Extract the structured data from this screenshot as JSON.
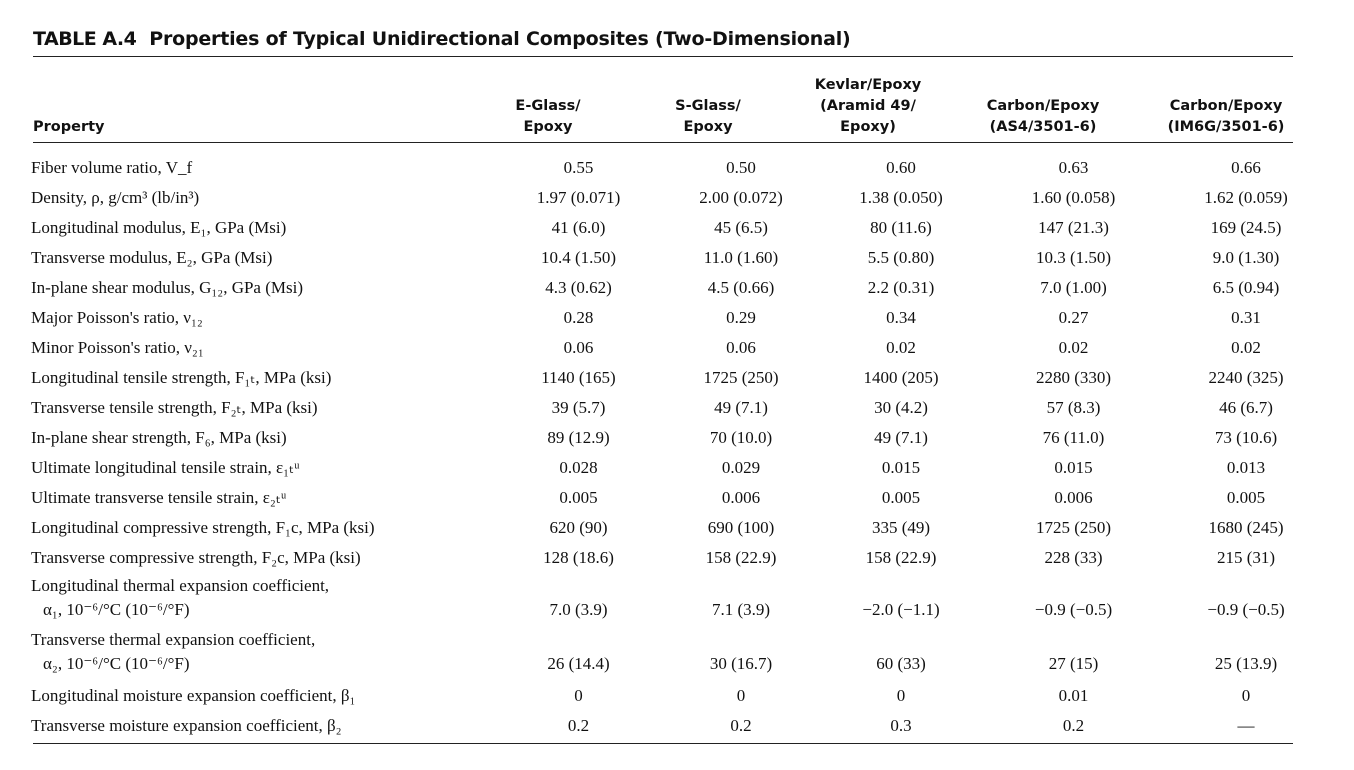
{
  "caption": {
    "label": "TABLE A.4",
    "title": "Properties of Typical Unidirectional Composites (Two-Dimensional)"
  },
  "columns": [
    "Property",
    "E-Glass/\nEpoxy",
    "S-Glass/\nEpoxy",
    "Kevlar/Epoxy\n(Aramid 49/\nEpoxy)",
    "Carbon/Epoxy\n(AS4/3501-6)",
    "Carbon/Epoxy\n(IM6G/3501-6)"
  ],
  "rows": [
    {
      "property": "Fiber volume ratio, V_f",
      "values": [
        "0.55",
        "0.50",
        "0.60",
        "0.63",
        "0.66"
      ]
    },
    {
      "property": "Density, ρ, g/cm³ (lb/in³)",
      "values": [
        "1.97 (0.071)",
        "2.00 (0.072)",
        "1.38 (0.050)",
        "1.60 (0.058)",
        "1.62 (0.059)"
      ]
    },
    {
      "property": "Longitudinal modulus, E₁, GPa (Msi)",
      "values": [
        "41 (6.0)",
        "45 (6.5)",
        "80 (11.6)",
        "147 (21.3)",
        "169 (24.5)"
      ]
    },
    {
      "property": "Transverse modulus, E₂, GPa (Msi)",
      "values": [
        "10.4 (1.50)",
        "11.0 (1.60)",
        "5.5 (0.80)",
        "10.3 (1.50)",
        "9.0 (1.30)"
      ]
    },
    {
      "property": "In-plane shear modulus, G₁₂, GPa (Msi)",
      "values": [
        "4.3 (0.62)",
        "4.5 (0.66)",
        "2.2 (0.31)",
        "7.0 (1.00)",
        "6.5 (0.94)"
      ]
    },
    {
      "property": "Major Poisson's ratio, ν₁₂",
      "values": [
        "0.28",
        "0.29",
        "0.34",
        "0.27",
        "0.31"
      ]
    },
    {
      "property": "Minor Poisson's ratio, ν₂₁",
      "values": [
        "0.06",
        "0.06",
        "0.02",
        "0.02",
        "0.02"
      ]
    },
    {
      "property": "Longitudinal tensile strength, F₁ₜ, MPa (ksi)",
      "values": [
        "1140 (165)",
        "1725 (250)",
        "1400 (205)",
        "2280 (330)",
        "2240 (325)"
      ]
    },
    {
      "property": "Transverse tensile strength, F₂ₜ, MPa (ksi)",
      "values": [
        "39 (5.7)",
        "49 (7.1)",
        "30 (4.2)",
        "57 (8.3)",
        "46 (6.7)"
      ]
    },
    {
      "property": "In-plane shear strength, F₆, MPa (ksi)",
      "values": [
        "89 (12.9)",
        "70 (10.0)",
        "49 (7.1)",
        "76 (11.0)",
        "73 (10.6)"
      ]
    },
    {
      "property": "Ultimate longitudinal tensile strain, ε₁ₜᵘ",
      "values": [
        "0.028",
        "0.029",
        "0.015",
        "0.015",
        "0.013"
      ]
    },
    {
      "property": "Ultimate transverse tensile strain, ε₂ₜᵘ",
      "values": [
        "0.005",
        "0.006",
        "0.005",
        "0.006",
        "0.005"
      ]
    },
    {
      "property": "Longitudinal compressive strength, F₁c, MPa (ksi)",
      "values": [
        "620 (90)",
        "690 (100)",
        "335 (49)",
        "1725 (250)",
        "1680 (245)"
      ]
    },
    {
      "property": "Transverse compressive strength, F₂c, MPa (ksi)",
      "values": [
        "128 (18.6)",
        "158 (22.9)",
        "158 (22.9)",
        "228 (33)",
        "215 (31)"
      ]
    },
    {
      "property": "Longitudinal thermal expansion coefficient,",
      "property2": "α₁, 10⁻⁶/°C (10⁻⁶/°F)",
      "values": [
        "7.0 (3.9)",
        "7.1 (3.9)",
        "−2.0 (−1.1)",
        "−0.9 (−0.5)",
        "−0.9 (−0.5)"
      ]
    },
    {
      "property": "Transverse thermal expansion coefficient,",
      "property2": "α₂, 10⁻⁶/°C (10⁻⁶/°F)",
      "values": [
        "26 (14.4)",
        "30 (16.7)",
        "60 (33)",
        "27 (15)",
        "25 (13.9)"
      ]
    },
    {
      "property": "Longitudinal moisture expansion coefficient, β₁",
      "values": [
        "0",
        "0",
        "0",
        "0.01",
        "0"
      ]
    },
    {
      "property": "Transverse moisture expansion coefficient, β₂",
      "values": [
        "0.2",
        "0.2",
        "0.3",
        "0.2",
        "—"
      ]
    }
  ]
}
